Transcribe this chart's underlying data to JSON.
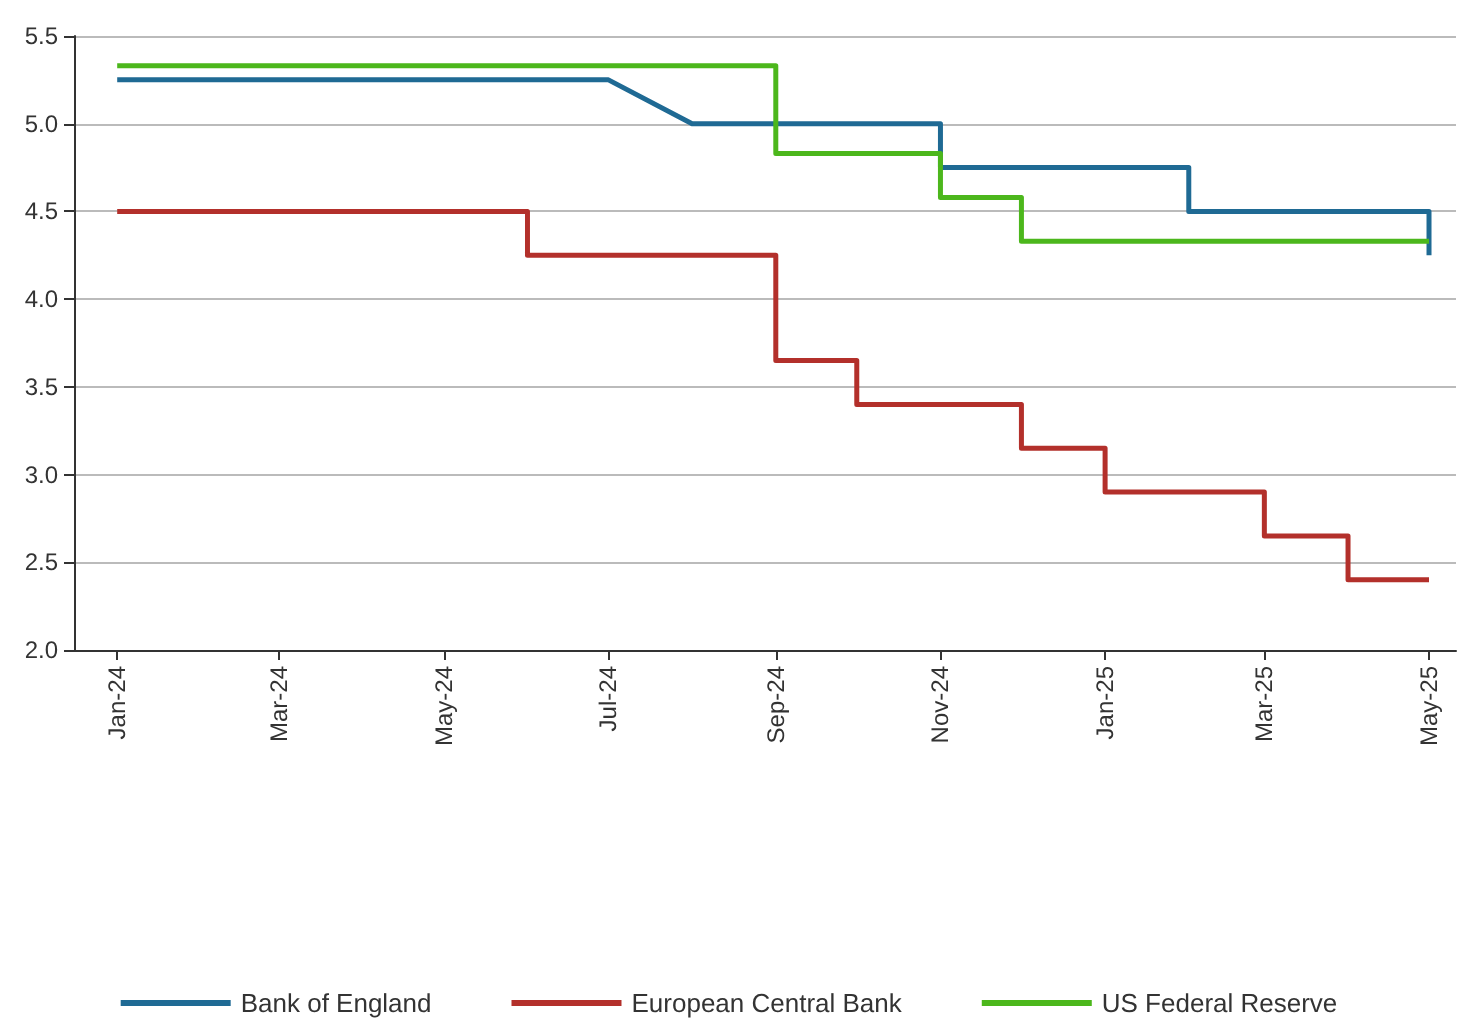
{
  "chart_data": {
    "type": "line",
    "xlim": [
      "2023-12-16",
      "2025-05-11"
    ],
    "xticks": [
      {
        "value": "2024-01",
        "label": "Jan-24"
      },
      {
        "value": "2024-03",
        "label": "Mar-24"
      },
      {
        "value": "2024-05",
        "label": "May-24"
      },
      {
        "value": "2024-07",
        "label": "Jul-24"
      },
      {
        "value": "2024-09",
        "label": "Sep-24"
      },
      {
        "value": "2024-11",
        "label": "Nov-24"
      },
      {
        "value": "2025-01",
        "label": "Jan-25"
      },
      {
        "value": "2025-03",
        "label": "Mar-25"
      },
      {
        "value": "2025-05",
        "label": "May-25"
      }
    ],
    "ylim": [
      2.0,
      5.5
    ],
    "yticks": [
      {
        "value": 2.0,
        "label": "2.0"
      },
      {
        "value": 2.5,
        "label": "2.5"
      },
      {
        "value": 3.0,
        "label": "3.0"
      },
      {
        "value": 3.5,
        "label": "3.5"
      },
      {
        "value": 4.0,
        "label": "4.0"
      },
      {
        "value": 4.5,
        "label": "4.5"
      },
      {
        "value": 5.0,
        "label": "5.0"
      },
      {
        "value": 5.5,
        "label": "5.5"
      }
    ],
    "grid": "y",
    "legend": "bottom",
    "marker": "none",
    "series": [
      {
        "name": "Bank of England",
        "color": "#1f6a94",
        "x": [
          "2024-01",
          "2024-07",
          "2024-08",
          "2024-11",
          "2024-11",
          "2025-02",
          "2025-02",
          "2025-05",
          "2025-05"
        ],
        "values": [
          5.25,
          5.25,
          5.0,
          5.0,
          4.75,
          4.75,
          4.5,
          4.5,
          4.25
        ]
      },
      {
        "name": "European Central Bank",
        "color": "#b3302b",
        "x": [
          "2024-01",
          "2024-06",
          "2024-06",
          "2024-09",
          "2024-09",
          "2024-10",
          "2024-10",
          "2024-12",
          "2024-12",
          "2025-01",
          "2025-01",
          "2025-03",
          "2025-03",
          "2025-04",
          "2025-04",
          "2025-05"
        ],
        "values": [
          4.5,
          4.5,
          4.25,
          4.25,
          3.65,
          3.65,
          3.4,
          3.4,
          3.15,
          3.15,
          2.9,
          2.9,
          2.65,
          2.65,
          2.4,
          2.4
        ]
      },
      {
        "name": "US Federal Reserve",
        "color": "#4cb71c",
        "x": [
          "2024-01",
          "2024-09",
          "2024-09",
          "2024-11",
          "2024-11",
          "2024-12",
          "2024-12",
          "2025-05"
        ],
        "values": [
          5.33,
          5.33,
          4.83,
          4.83,
          4.58,
          4.58,
          4.33,
          4.33
        ]
      }
    ]
  }
}
